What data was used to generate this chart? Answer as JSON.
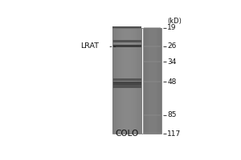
{
  "background_color": "#f0f0f0",
  "fig_width": 3.0,
  "fig_height": 2.0,
  "dpi": 100,
  "lane_label": "COLO",
  "marker_label": "LRAT",
  "marker_kd": "(kD)",
  "mw_markers": [
    117,
    85,
    48,
    34,
    26,
    19
  ],
  "lane_bg_color": "#b0b0b0",
  "marker_lane_bg_color": "#a8a8a8",
  "band_colors_sample": [
    "#787878",
    "#686868",
    "#808080",
    "#707070",
    "#606060",
    "#787878"
  ],
  "band_mws_sample": [
    52,
    49,
    46,
    26,
    24,
    19
  ],
  "band_intensities": [
    0.45,
    0.55,
    0.42,
    0.62,
    0.45,
    0.55
  ],
  "text_color": "#111111",
  "tick_color": "#444444",
  "lrat_mw": 26
}
